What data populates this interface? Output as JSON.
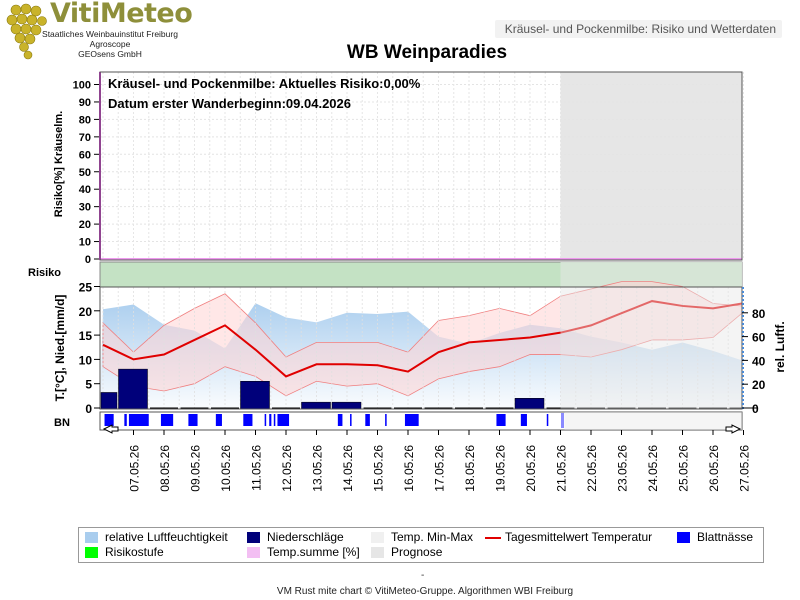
{
  "header": {
    "subtitle": "Kräusel- und Pockenmilbe: Risiko und Wetterdaten"
  },
  "logo": {
    "name": "VitiMeteo",
    "line1": "Staatliches Weinbauinstitut Freiburg",
    "line2": "Agroscope",
    "line3": "GEOsens GmbH"
  },
  "colors": {
    "humidity": "#a9cdee",
    "precip": "#00007a",
    "temp_band": "#ffd4d4",
    "temp_mean": "#e00000",
    "leaf_wet": "#0000ff",
    "risk_level": "#00ff00",
    "risk_area": "#b8dcb8",
    "temp_sum": "#ee99ee",
    "forecast": "#e6e6e6"
  },
  "chart_data": {
    "type": "line",
    "title": "WB Weinparadies",
    "annotations": [
      "Kräusel- und Pockenmilbe: Aktuelles Risiko:0,00%",
      "Datum erster Wanderbeginn:09.04.2026"
    ],
    "x_ticks": [
      "07.05.26",
      "08.05.26",
      "09.05.26",
      "10.05.26",
      "11.05.26",
      "12.05.26",
      "13.05.26",
      "14.05.26",
      "15.05.26",
      "16.05.26",
      "17.05.26",
      "18.05.26",
      "19.05.26",
      "20.05.26",
      "21.05.26",
      "22.05.26",
      "23.05.26",
      "24.05.26",
      "25.05.26",
      "26.05.26",
      "27.05.26"
    ],
    "forecast_from": "21.05.26",
    "risk_panel": {
      "ylabel": "Risiko[%] Kräuselm.",
      "ylim": [
        0,
        100
      ],
      "yticks": [
        0,
        10,
        20,
        30,
        40,
        50,
        60,
        70,
        80,
        90,
        100
      ],
      "risk_value": 0,
      "temp_sum_value": 0
    },
    "risk_strip_label": "Risiko",
    "weather_panel": {
      "ylabel_left": "T.[°C], Nied.[mm/d]",
      "ylabel_right": "rel. Luftf.",
      "ylim_left": [
        0,
        28
      ],
      "yticks_left": [
        0,
        5,
        10,
        15,
        20,
        25
      ],
      "ylim_right": [
        -10,
        95
      ],
      "yticks_right": [
        0,
        20,
        40,
        60,
        80
      ],
      "days": [
        6,
        7,
        8,
        9,
        10,
        11,
        12,
        13,
        14,
        15,
        16,
        17,
        18,
        19,
        20,
        21,
        22,
        23,
        24,
        25,
        26,
        27
      ],
      "temp_max": [
        17.5,
        11.5,
        17,
        20.5,
        23.5,
        17.5,
        10.5,
        13.5,
        13.5,
        13.5,
        11.5,
        18,
        19,
        20.5,
        19,
        23,
        24.5,
        26,
        26,
        25,
        21.5,
        21
      ],
      "temp_mean": [
        13,
        10,
        11,
        14,
        17,
        12,
        6.5,
        9,
        9,
        8.8,
        7.5,
        11.5,
        13.5,
        14,
        14.5,
        15.5,
        17,
        19.5,
        22,
        21,
        20.5,
        21.5
      ],
      "temp_min": [
        8.5,
        4.5,
        3.5,
        5,
        8.5,
        6.5,
        2.5,
        5.5,
        4.5,
        5,
        2.5,
        6,
        7.5,
        8.5,
        11,
        11,
        10.5,
        12,
        14,
        14,
        14.5,
        19.5
      ],
      "humidity": [
        83,
        87,
        70,
        65,
        50,
        88,
        76,
        72,
        80,
        79,
        81,
        60,
        54,
        63,
        70,
        67,
        60,
        55,
        49,
        55,
        48,
        40
      ],
      "precip": [
        3.2,
        8,
        0,
        0,
        0,
        5.5,
        0,
        1.2,
        1.2,
        0,
        0,
        0,
        0,
        0,
        2,
        0,
        0,
        0,
        0,
        0,
        0,
        0
      ]
    },
    "leaf_wetness_label": "BN",
    "leaf_wetness_periods": [
      [
        6.05,
        6.35
      ],
      [
        6.7,
        6.78
      ],
      [
        6.85,
        7.5
      ],
      [
        7.9,
        8.3
      ],
      [
        8.8,
        9.1
      ],
      [
        9.7,
        9.9
      ],
      [
        10.6,
        10.9
      ],
      [
        11.3,
        11.35
      ],
      [
        11.45,
        11.52
      ],
      [
        11.6,
        11.65
      ],
      [
        11.72,
        12.1
      ],
      [
        13.7,
        13.85
      ],
      [
        14.1,
        14.15
      ],
      [
        14.6,
        14.75
      ],
      [
        15.25,
        15.3
      ],
      [
        15.9,
        16.35
      ],
      [
        18.9,
        19.2
      ],
      [
        19.7,
        19.9
      ],
      [
        20.55,
        20.6
      ]
    ],
    "legend": [
      {
        "label": "relative Luftfeuchtigkeit",
        "kind": "box",
        "color": "#a9cdee"
      },
      {
        "label": "Niederschläge",
        "kind": "box",
        "color": "#00007a"
      },
      {
        "label": "Temp. Min-Max",
        "kind": "box",
        "color": "#f0f0f0"
      },
      {
        "label": "Tagesmittelwert Temperatur",
        "kind": "line",
        "color": "#e00000"
      },
      {
        "label": "Blattnässe",
        "kind": "box",
        "color": "#0000ff"
      },
      {
        "label": "Risikostufe",
        "kind": "box",
        "color": "#00ff00"
      },
      {
        "label": "Temp.summe [%]",
        "kind": "box",
        "color": "#f3bff3"
      },
      {
        "label": "Prognose",
        "kind": "box",
        "color": "#e6e6e6"
      }
    ]
  },
  "footer": {
    "dash": "-",
    "credit": "VM Rust mite chart © VitiMeteo-Gruppe. Algorithmen WBI Freiburg"
  }
}
